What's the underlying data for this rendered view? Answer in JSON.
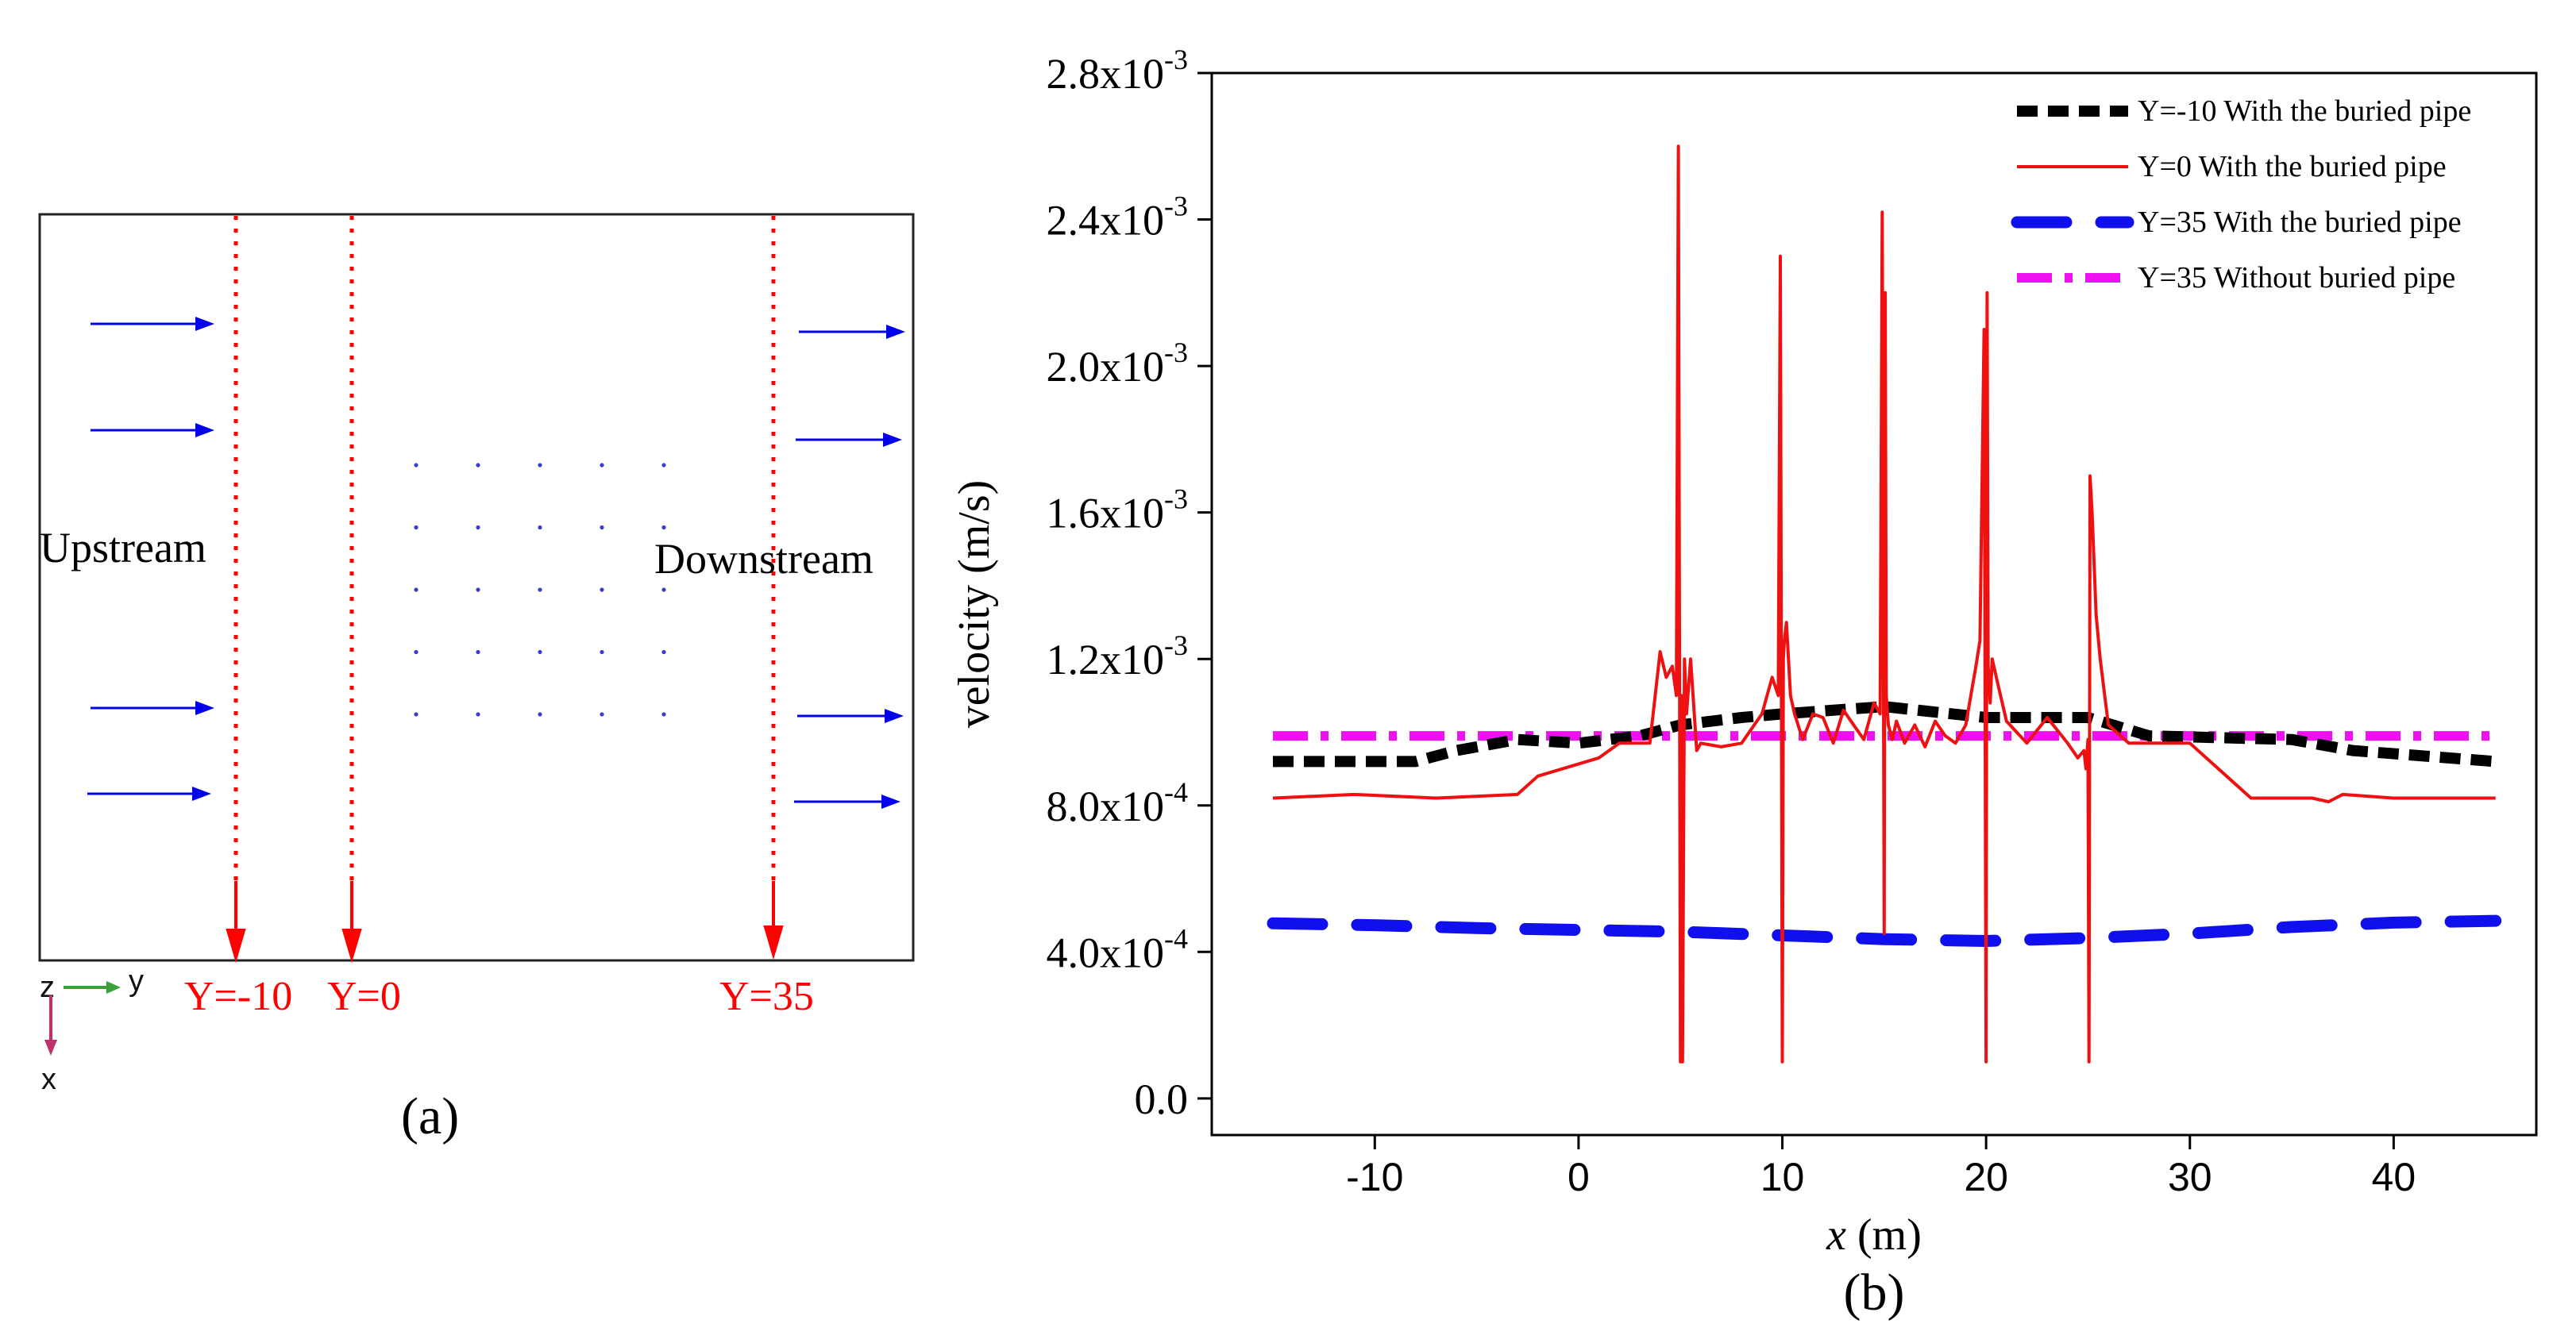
{
  "panel_a": {
    "caption": "(a)",
    "upstream_label": "Upstream",
    "downstream_label": "Downstream",
    "section_lines": [
      {
        "label": "Y=-10"
      },
      {
        "label": "Y=0"
      },
      {
        "label": "Y=35"
      }
    ],
    "axes_indicator": {
      "z": "z",
      "y": "y",
      "x": "x"
    },
    "pipe_grid": {
      "rows": 5,
      "cols": 5
    },
    "colors": {
      "flow_arrow": "#0000ee",
      "section_line": "#ff0000",
      "pipe_dot": "#3b3bd0",
      "y_axis": "#3aa03a",
      "x_axis": "#c0306a"
    }
  },
  "chart_data": {
    "type": "line",
    "caption": "(b)",
    "xlabel_var": "x",
    "xlabel_unit": " (m)",
    "ylabel": "velocity (m/s)",
    "xlim": [
      -18,
      47
    ],
    "ylim": [
      -0.0001,
      0.0028
    ],
    "xticks": [
      -10,
      0,
      10,
      20,
      30,
      40
    ],
    "xtick_labels": [
      "-10",
      "0",
      "10",
      "20",
      "30",
      "40"
    ],
    "yticks": [
      0.0,
      0.0004,
      0.0008,
      0.0012,
      0.0016,
      0.002,
      0.0024,
      0.0028
    ],
    "ytick_labels": [
      {
        "mant": "0.0",
        "exp": ""
      },
      {
        "mant": "4.0x10",
        "exp": "-4"
      },
      {
        "mant": "8.0x10",
        "exp": "-4"
      },
      {
        "mant": "1.2x10",
        "exp": "-3"
      },
      {
        "mant": "1.6x10",
        "exp": "-3"
      },
      {
        "mant": "2.0x10",
        "exp": "-3"
      },
      {
        "mant": "2.4x10",
        "exp": "-3"
      },
      {
        "mant": "2.8x10",
        "exp": "-3"
      }
    ],
    "legend_position": "top-right",
    "series": [
      {
        "name": "Y=-10 With the buried pipe",
        "color": "#000000",
        "style": "dash",
        "x": [
          -15,
          -8,
          -6,
          -3,
          0,
          3,
          5,
          8,
          10,
          15,
          20,
          25,
          28,
          35,
          38,
          45
        ],
        "y": [
          0.00092,
          0.00092,
          0.00095,
          0.00098,
          0.00097,
          0.00099,
          0.00102,
          0.00104,
          0.00105,
          0.00107,
          0.00104,
          0.00104,
          0.00099,
          0.00098,
          0.00095,
          0.00092
        ]
      },
      {
        "name": "Y=0 With the buried pipe",
        "color": "#ee1111",
        "style": "solid",
        "x": [
          -15,
          -11,
          -7,
          -3,
          -2,
          1,
          2,
          3.5,
          4,
          4.3,
          4.6,
          4.8,
          4.9,
          5.0,
          5.05,
          5.1,
          5.2,
          5.3,
          5.5,
          5.8,
          6,
          7,
          8,
          9,
          9.5,
          9.8,
          9.9,
          10.0,
          10.05,
          10.1,
          10.2,
          10.4,
          10.6,
          11,
          11.5,
          12,
          12.5,
          13,
          13.5,
          14,
          14.5,
          14.8,
          14.9,
          15.0,
          15.05,
          15.1,
          15.2,
          15.4,
          15.6,
          16,
          16.5,
          17,
          17.5,
          18,
          18.5,
          19,
          19.5,
          19.7,
          19.9,
          20.0,
          20.05,
          20.1,
          20.2,
          20.3,
          20.5,
          21,
          22,
          23,
          24,
          24.5,
          24.8,
          24.9,
          25.0,
          25.05,
          25.1,
          25.2,
          25.4,
          25.6,
          26,
          27,
          28,
          30,
          33,
          36,
          36.8,
          37.5,
          40,
          45
        ],
        "y": [
          0.00082,
          0.00083,
          0.00082,
          0.00083,
          0.00088,
          0.00093,
          0.00097,
          0.00097,
          0.00122,
          0.00115,
          0.00118,
          0.0011,
          0.0026,
          0.0001,
          0.0011,
          0.0001,
          0.0012,
          0.00105,
          0.0012,
          0.00095,
          0.00097,
          0.00096,
          0.00097,
          0.00105,
          0.00115,
          0.0011,
          0.0023,
          0.0001,
          0.0012,
          0.00125,
          0.0013,
          0.0011,
          0.00105,
          0.00098,
          0.00105,
          0.00104,
          0.00097,
          0.00106,
          0.00102,
          0.00098,
          0.00108,
          0.00105,
          0.00242,
          0.00045,
          0.0022,
          0.0011,
          0.00102,
          0.00098,
          0.00103,
          0.00097,
          0.00102,
          0.00096,
          0.00103,
          0.00099,
          0.00097,
          0.00102,
          0.00118,
          0.00125,
          0.0021,
          0.0001,
          0.0022,
          0.00118,
          0.00108,
          0.0012,
          0.00115,
          0.00103,
          0.00097,
          0.00104,
          0.00097,
          0.00093,
          0.00095,
          0.0009,
          0.00098,
          0.0001,
          0.0017,
          0.0016,
          0.00132,
          0.0012,
          0.00102,
          0.00097,
          0.00097,
          0.00097,
          0.00082,
          0.00082,
          0.00081,
          0.00083,
          0.00082,
          0.00082
        ]
      },
      {
        "name": "Y=35 With the buried pipe",
        "color": "#1010ee",
        "style": "longdash",
        "x": [
          -15,
          -10,
          -5,
          0,
          5,
          10,
          15,
          20,
          25,
          30,
          35,
          40,
          45
        ],
        "y": [
          0.000478,
          0.000473,
          0.000465,
          0.00046,
          0.000455,
          0.000445,
          0.000435,
          0.00043,
          0.000438,
          0.00045,
          0.000468,
          0.00048,
          0.000485
        ]
      },
      {
        "name": "Y=35 Without buried pipe",
        "color": "#ee10ee",
        "style": "dashdot",
        "x": [
          -15,
          45
        ],
        "y": [
          0.00099,
          0.00099
        ]
      }
    ]
  }
}
